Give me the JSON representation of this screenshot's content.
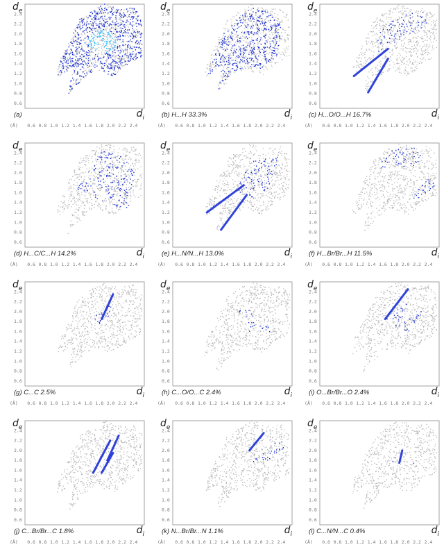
{
  "axis_labels": {
    "y_main": "d",
    "y_sub": "e",
    "x_main": "d",
    "x_sub": "i",
    "x_unit": "(Å)"
  },
  "colors": {
    "background_points": "#b8b8b8",
    "highlight_low": "#1a2fd6",
    "highlight_high": "#27b7ff",
    "frame": "#8a8a8a"
  },
  "chart_data": [
    {
      "panel": "(a)",
      "contact": "",
      "percent": "",
      "type": "scatter",
      "x_ticks": [
        "0.6",
        "0.8",
        "1.0",
        "1.2",
        "1.4",
        "1.6",
        "1.8",
        "2.0",
        "2.2",
        "2.4"
      ],
      "y_ticks": [
        "2.4",
        "2.2",
        "2.0",
        "1.8",
        "1.6",
        "1.4",
        "1.2",
        "1.0",
        "0.8",
        "0.6"
      ],
      "xlim": [
        0.5,
        2.6
      ],
      "ylim": [
        0.5,
        2.6
      ],
      "highlight": "full"
    },
    {
      "panel": "(b)",
      "contact": "H...H",
      "percent": "33.3%",
      "type": "scatter",
      "x_ticks": [
        "0.6",
        "0.8",
        "1.0",
        "1.2",
        "1.4",
        "1.6",
        "1.8",
        "2.0",
        "2.2",
        "2.4"
      ],
      "y_ticks": [
        "2.4",
        "2.2",
        "2.0",
        "1.8",
        "1.6",
        "1.4",
        "1.2",
        "1.0",
        "0.8",
        "0.6"
      ],
      "xlim": [
        0.5,
        2.6
      ],
      "ylim": [
        0.5,
        2.6
      ],
      "highlight": "hh"
    },
    {
      "panel": "(c)",
      "contact": "H...O/O...H",
      "percent": "16.7%",
      "type": "scatter",
      "x_ticks": [
        "0.6",
        "0.8",
        "1.0",
        "1.2",
        "1.4",
        "1.6",
        "1.8",
        "2.0",
        "2.2",
        "2.4"
      ],
      "y_ticks": [
        "2.4",
        "2.2",
        "2.0",
        "1.8",
        "1.6",
        "1.4",
        "1.2",
        "1.0",
        "0.8",
        "0.6"
      ],
      "xlim": [
        0.5,
        2.6
      ],
      "ylim": [
        0.5,
        2.6
      ],
      "highlight": "ho"
    },
    {
      "panel": "(d)",
      "contact": "H...C/C...H",
      "percent": "14.2%",
      "type": "scatter",
      "x_ticks": [
        "0.6",
        "0.8",
        "1.0",
        "1.2",
        "1.4",
        "1.6",
        "1.8",
        "2.0",
        "2.2",
        "2.4"
      ],
      "y_ticks": [
        "2.4",
        "2.2",
        "2.0",
        "1.8",
        "1.6",
        "1.4",
        "1.2",
        "1.0",
        "0.8",
        "0.6"
      ],
      "xlim": [
        0.5,
        2.6
      ],
      "ylim": [
        0.5,
        2.6
      ],
      "highlight": "hc"
    },
    {
      "panel": "(e)",
      "contact": "H...N/N...H",
      "percent": "13.0%",
      "type": "scatter",
      "x_ticks": [
        "0.6",
        "0.8",
        "1.0",
        "1.2",
        "1.4",
        "1.6",
        "1.8",
        "2.0",
        "2.2",
        "2.4"
      ],
      "y_ticks": [
        "2.4",
        "2.2",
        "2.0",
        "1.8",
        "1.6",
        "1.4",
        "1.2",
        "1.0",
        "0.8",
        "0.6"
      ],
      "xlim": [
        0.5,
        2.6
      ],
      "ylim": [
        0.5,
        2.6
      ],
      "highlight": "hn"
    },
    {
      "panel": "(f)",
      "contact": "H...Br/Br...H",
      "percent": "11.5%",
      "type": "scatter",
      "x_ticks": [
        "0.6",
        "0.8",
        "1.0",
        "1.2",
        "1.4",
        "1.6",
        "1.8",
        "2.0",
        "2.2",
        "2.4"
      ],
      "y_ticks": [
        "2.4",
        "2.2",
        "2.0",
        "1.8",
        "1.6",
        "1.4",
        "1.2",
        "1.0",
        "0.8",
        "0.6"
      ],
      "xlim": [
        0.5,
        2.6
      ],
      "ylim": [
        0.5,
        2.6
      ],
      "highlight": "hbr"
    },
    {
      "panel": "(g)",
      "contact": "C...C",
      "percent": "2.5%",
      "type": "scatter",
      "x_ticks": [
        "0.6",
        "0.8",
        "1.0",
        "1.2",
        "1.4",
        "1.6",
        "1.8",
        "2.0",
        "2.2",
        "2.4"
      ],
      "y_ticks": [
        "2.4",
        "2.2",
        "2.0",
        "1.8",
        "1.6",
        "1.4",
        "1.2",
        "1.0",
        "0.8",
        "0.6"
      ],
      "xlim": [
        0.5,
        2.6
      ],
      "ylim": [
        0.5,
        2.6
      ],
      "highlight": "cc"
    },
    {
      "panel": "(h)",
      "contact": "C...O/O...C",
      "percent": "2.4%",
      "type": "scatter",
      "x_ticks": [
        "0.6",
        "0.8",
        "1.0",
        "1.2",
        "1.4",
        "1.6",
        "1.8",
        "2.0",
        "2.2",
        "2.4"
      ],
      "y_ticks": [
        "2.4",
        "2.2",
        "2.0",
        "1.8",
        "1.6",
        "1.4",
        "1.2",
        "1.0",
        "0.8",
        "0.6"
      ],
      "xlim": [
        0.5,
        2.6
      ],
      "ylim": [
        0.5,
        2.6
      ],
      "highlight": "co"
    },
    {
      "panel": "(i)",
      "contact": "O...Br/Br...O",
      "percent": "2.4%",
      "type": "scatter",
      "x_ticks": [
        "0.6",
        "0.8",
        "1.0",
        "1.2",
        "1.4",
        "1.6",
        "1.8",
        "2.0",
        "2.2",
        "2.4"
      ],
      "y_ticks": [
        "2.4",
        "2.2",
        "2.0",
        "1.8",
        "1.6",
        "1.4",
        "1.2",
        "1.0",
        "0.8",
        "0.6"
      ],
      "xlim": [
        0.5,
        2.6
      ],
      "ylim": [
        0.5,
        2.6
      ],
      "highlight": "obr"
    },
    {
      "panel": "(j)",
      "contact": "C...Br/Br...C",
      "percent": "1.8%",
      "type": "scatter",
      "x_ticks": [
        "0.6",
        "0.8",
        "1.0",
        "1.2",
        "1.4",
        "1.6",
        "1.8",
        "2.0",
        "2.2",
        "2.4"
      ],
      "y_ticks": [
        "2.4",
        "2.2",
        "2.0",
        "1.8",
        "1.6",
        "1.4",
        "1.2",
        "1.0",
        "0.8",
        "0.6"
      ],
      "xlim": [
        0.5,
        2.6
      ],
      "ylim": [
        0.5,
        2.6
      ],
      "highlight": "cbr"
    },
    {
      "panel": "(k)",
      "contact": "N...Br/Br...N",
      "percent": "1.1%",
      "type": "scatter",
      "x_ticks": [
        "0.6",
        "0.8",
        "1.0",
        "1.2",
        "1.4",
        "1.6",
        "1.8",
        "2.0",
        "2.2",
        "2.4"
      ],
      "y_ticks": [
        "2.4",
        "2.2",
        "2.0",
        "1.8",
        "1.6",
        "1.4",
        "1.2",
        "1.0",
        "0.8",
        "0.6"
      ],
      "xlim": [
        0.5,
        2.6
      ],
      "ylim": [
        0.5,
        2.6
      ],
      "highlight": "nbr"
    },
    {
      "panel": "(l)",
      "contact": "C...N/N...C",
      "percent": "0.4%",
      "type": "scatter",
      "x_ticks": [
        "0.6",
        "0.8",
        "1.0",
        "1.2",
        "1.4",
        "1.6",
        "1.8",
        "2.0",
        "2.2",
        "2.4"
      ],
      "y_ticks": [
        "2.4",
        "2.2",
        "2.0",
        "1.8",
        "1.6",
        "1.4",
        "1.2",
        "1.0",
        "0.8",
        "0.6"
      ],
      "xlim": [
        0.5,
        2.6
      ],
      "ylim": [
        0.5,
        2.6
      ],
      "highlight": "cn"
    }
  ]
}
